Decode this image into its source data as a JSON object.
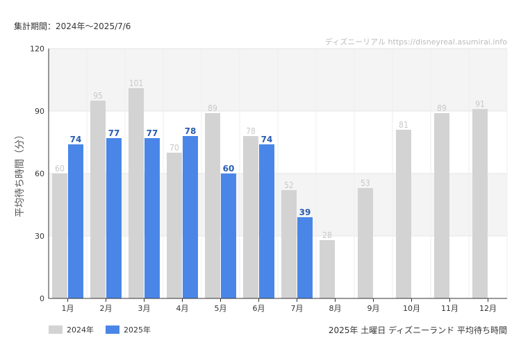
{
  "period_text": "集計期間：2024年～2025/7/6",
  "watermark": "ディズニーリアル https://disneyreal.asumirai.info",
  "caption": "2025年 土曜日 ディズニーランド 平均待ち時間",
  "colors": {
    "2024": "#d3d3d3",
    "2025": "#4a86e8",
    "label2024": "#c8c8c8",
    "label2025": "#2a5db0",
    "band": "#f4f4f4"
  },
  "chart_data": {
    "type": "bar",
    "categories": [
      "1月",
      "2月",
      "3月",
      "4月",
      "5月",
      "6月",
      "7月",
      "8月",
      "9月",
      "10月",
      "11月",
      "12月"
    ],
    "series": [
      {
        "name": "2024年",
        "values": [
          60,
          95,
          101,
          70,
          89,
          78,
          52,
          28,
          53,
          81,
          89,
          91
        ]
      },
      {
        "name": "2025年",
        "values": [
          74,
          77,
          77,
          78,
          60,
          74,
          39,
          null,
          null,
          null,
          null,
          null
        ]
      }
    ],
    "ylabel": "平均待ち時間（分）",
    "ylim": [
      0,
      120
    ],
    "yticks": [
      0,
      30,
      60,
      90,
      120
    ],
    "grid": true,
    "legend_position": "bottom-left"
  }
}
